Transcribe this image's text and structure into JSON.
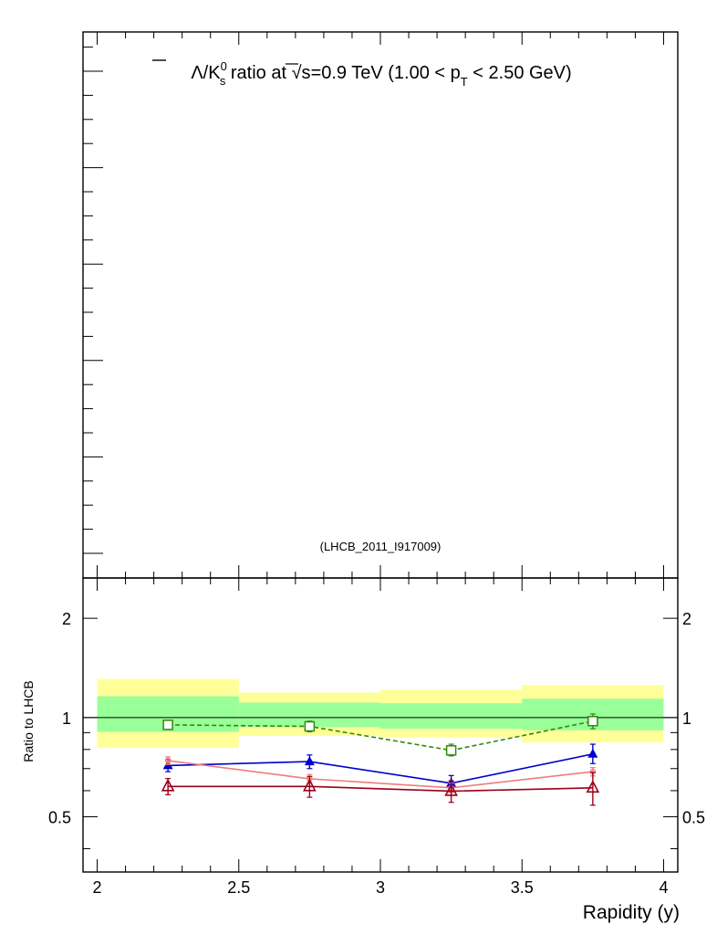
{
  "chart_data": [
    {
      "type": "empty",
      "title_parts": {
        "lambda": "Λ",
        "slash_k": "/K",
        "k_sup": "0",
        "k_sub": "s",
        "ratio_at": " ratio at ",
        "sqrt": "√s",
        "energy": "=0.9 TeV (1.00 < p",
        "pt_sub": "T",
        "pt_range": " < 2.50 GeV)"
      },
      "annotation": "(LHCB_2011_I917009)"
    },
    {
      "type": "line",
      "xlabel": "Rapidity (y)",
      "ylabel": "Ratio to LHCB",
      "xlim": [
        1.95,
        4.05
      ],
      "ylim": [
        0.34,
        2.65
      ],
      "ylog": true,
      "reference_line": 1,
      "xticks": [
        2,
        2.5,
        3,
        3.5,
        4
      ],
      "xtick_labels": [
        "2",
        "2.5",
        "3",
        "3.5",
        "4"
      ],
      "yticks": [
        0.5,
        1,
        2
      ],
      "ytick_labels": [
        "0.5",
        "1",
        "2"
      ],
      "bins": [
        [
          2.0,
          2.5
        ],
        [
          2.5,
          3.0
        ],
        [
          3.0,
          3.5
        ],
        [
          3.5,
          4.0
        ]
      ],
      "band_inner": {
        "color": "#99ff99",
        "lower": [
          0.905,
          0.935,
          0.925,
          0.915
        ],
        "upper": [
          1.16,
          1.11,
          1.105,
          1.14
        ]
      },
      "band_outer": {
        "color": "#ffff99",
        "lower": [
          0.81,
          0.88,
          0.87,
          0.84
        ],
        "upper": [
          1.31,
          1.19,
          1.215,
          1.255
        ]
      },
      "series": [
        {
          "color": "#33880f",
          "marker": "open-square",
          "dash": "5,3",
          "x": [
            2.25,
            2.75,
            3.25,
            3.75
          ],
          "y": [
            0.95,
            0.94,
            0.795,
            0.975
          ],
          "err_low": [
            0.03,
            0.035,
            0.03,
            0.05
          ],
          "err_high": [
            0.03,
            0.035,
            0.035,
            0.05
          ]
        },
        {
          "color": "#0000cc",
          "marker": "filled-triangle",
          "dash": "",
          "x": [
            2.25,
            2.75,
            3.25,
            3.75
          ],
          "y": [
            0.715,
            0.735,
            0.632,
            0.775
          ],
          "err_low": [
            0.03,
            0.035,
            0.035,
            0.05
          ],
          "err_high": [
            0.03,
            0.035,
            0.035,
            0.055
          ]
        },
        {
          "color": "#f07c7c",
          "marker": "small-circle",
          "dash": "",
          "x": [
            2.25,
            2.75,
            3.25,
            3.75
          ],
          "y": [
            0.74,
            0.652,
            0.612,
            0.685
          ],
          "err_low": [
            0.02,
            0.02,
            0.02,
            0.02
          ],
          "err_high": [
            0.02,
            0.02,
            0.02,
            0.02
          ]
        },
        {
          "color": "#99001a",
          "marker": "open-triangle",
          "dash": "",
          "x": [
            2.25,
            2.75,
            3.25,
            3.75
          ],
          "y": [
            0.618,
            0.618,
            0.598,
            0.612
          ],
          "err_low": [
            0.035,
            0.045,
            0.045,
            0.07
          ],
          "err_high": [
            0.035,
            0.045,
            0.045,
            0.07
          ]
        }
      ]
    }
  ]
}
